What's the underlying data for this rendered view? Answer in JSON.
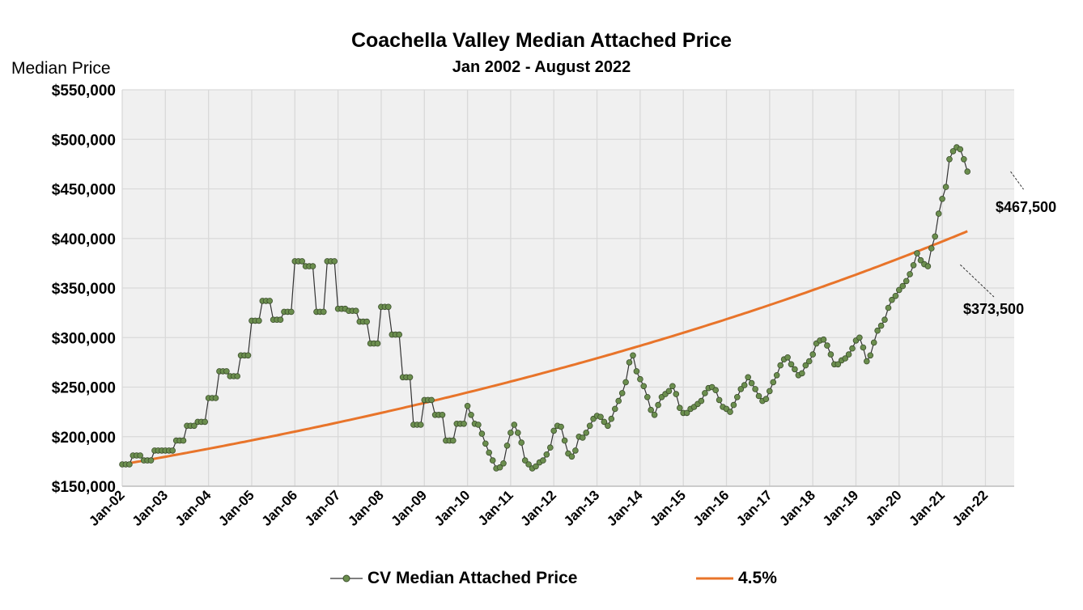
{
  "chart_data": {
    "type": "line",
    "title": "Coachella Valley Median Attached Price",
    "subtitle": "Jan 2002 - August 2022",
    "ylabel": "Median Price",
    "xlabel": "",
    "ylim": [
      150000,
      550000
    ],
    "yticks": [
      150000,
      200000,
      250000,
      300000,
      350000,
      400000,
      450000,
      500000,
      550000
    ],
    "ytick_labels": [
      "$150,000",
      "$200,000",
      "$250,000",
      "$300,000",
      "$350,000",
      "$400,000",
      "$450,000",
      "$500,000",
      "$550,000"
    ],
    "xticks": [
      "Jan-02",
      "Jan-03",
      "Jan-04",
      "Jan-05",
      "Jan-06",
      "Jan-07",
      "Jan-08",
      "Jan-09",
      "Jan-10",
      "Jan-11",
      "Jan-12",
      "Jan-13",
      "Jan-14",
      "Jan-15",
      "Jan-16",
      "Jan-17",
      "Jan-18",
      "Jan-19",
      "Jan-20",
      "Jan-21",
      "Jan-22"
    ],
    "grid": true,
    "legend_position": "bottom",
    "series": [
      {
        "name": "CV Median Attached Price",
        "color": "#6b8e4e",
        "marker": "circle",
        "values": [
          172000,
          172000,
          172000,
          181000,
          181000,
          181000,
          176000,
          176000,
          176000,
          186000,
          186000,
          186000,
          186000,
          186000,
          186000,
          196000,
          196000,
          196000,
          211000,
          211000,
          211000,
          215000,
          215000,
          215000,
          239000,
          239000,
          239000,
          266000,
          266000,
          266000,
          261000,
          261000,
          261000,
          282000,
          282000,
          282000,
          317000,
          317000,
          317000,
          337000,
          337000,
          337000,
          318000,
          318000,
          318000,
          326000,
          326000,
          326000,
          377000,
          377000,
          377000,
          372000,
          372000,
          372000,
          326000,
          326000,
          326000,
          377000,
          377000,
          377000,
          329000,
          329000,
          329000,
          327000,
          327000,
          327000,
          316000,
          316000,
          316000,
          294000,
          294000,
          294000,
          331000,
          331000,
          331000,
          303000,
          303000,
          303000,
          260000,
          260000,
          260000,
          212000,
          212000,
          212000,
          237000,
          237000,
          237000,
          222000,
          222000,
          222000,
          196000,
          196000,
          196000,
          213000,
          213000,
          213000,
          231000,
          222000,
          213000,
          212000,
          203000,
          193000,
          184000,
          176000,
          168000,
          169000,
          173000,
          191000,
          204000,
          212000,
          204000,
          194000,
          176000,
          172000,
          168000,
          170000,
          174000,
          176000,
          182000,
          189000,
          206000,
          211000,
          210000,
          196000,
          183000,
          180000,
          186000,
          200000,
          199000,
          204000,
          211000,
          218000,
          221000,
          220000,
          215000,
          211000,
          218000,
          228000,
          236000,
          244000,
          255000,
          275000,
          282000,
          266000,
          258000,
          251000,
          240000,
          227000,
          222000,
          232000,
          240000,
          243000,
          246000,
          251000,
          243000,
          229000,
          224000,
          224000,
          228000,
          230000,
          233000,
          236000,
          244000,
          249000,
          250000,
          247000,
          237000,
          230000,
          228000,
          225000,
          232000,
          240000,
          248000,
          252000,
          260000,
          254000,
          248000,
          241000,
          236000,
          238000,
          246000,
          255000,
          262000,
          272000,
          278000,
          280000,
          273000,
          268000,
          262000,
          264000,
          272000,
          276000,
          283000,
          294000,
          297000,
          298000,
          292000,
          283000,
          273000,
          273000,
          277000,
          279000,
          283000,
          289000,
          297000,
          300000,
          290000,
          276000,
          282000,
          295000,
          307000,
          312000,
          318000,
          330000,
          338000,
          342000,
          348000,
          352000,
          357000,
          364000,
          373000,
          385000,
          378000,
          374000,
          372000,
          390000,
          402000,
          425000,
          440000,
          452000,
          480000,
          488000,
          492000,
          490000,
          480000,
          467500
        ]
      },
      {
        "name": "4.5%",
        "color": "#e8742a",
        "growth": "4.5% annual",
        "start_value": 172000
      }
    ],
    "annotations": [
      {
        "text": "$467,500",
        "x": "Aug-22",
        "y": 467500
      },
      {
        "text": "$373,500",
        "x": "Jun-21",
        "y": 373500
      }
    ]
  }
}
